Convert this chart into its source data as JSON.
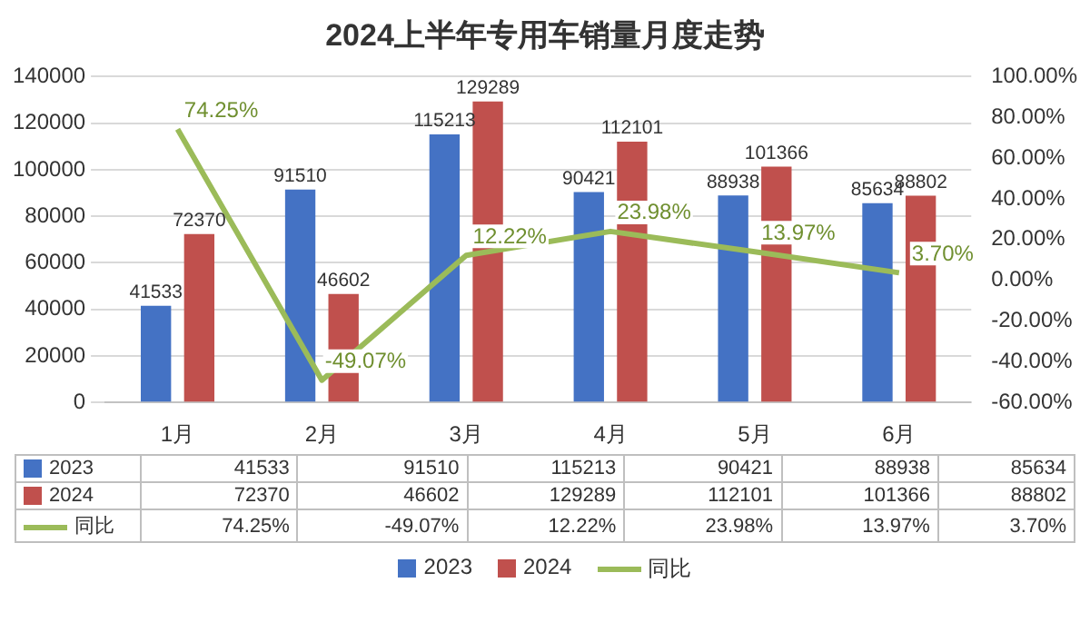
{
  "chart_data": {
    "type": "bar",
    "title": "2024上半年专用车销量月度走势",
    "categories": [
      "1月",
      "2月",
      "3月",
      "4月",
      "5月",
      "6月"
    ],
    "series": [
      {
        "name": "2023",
        "color": "#4472c4",
        "values": [
          41533,
          91510,
          115213,
          90421,
          88938,
          85634
        ],
        "value_labels": [
          "41533",
          "91510",
          "115213",
          "90421",
          "88938",
          "85634"
        ]
      },
      {
        "name": "2024",
        "color": "#c0504d",
        "values": [
          72370,
          46602,
          129289,
          112101,
          101366,
          88802
        ],
        "value_labels": [
          "72370",
          "46602",
          "129289",
          "112101",
          "101366",
          "88802"
        ]
      },
      {
        "name": "同比",
        "type": "line",
        "axis": "y2",
        "color": "#9bbb59",
        "values": [
          74.25,
          -49.07,
          12.22,
          23.98,
          13.97,
          3.7
        ],
        "value_labels": [
          "74.25%",
          "-49.07%",
          "12.22%",
          "23.98%",
          "13.97%",
          "3.70%"
        ]
      }
    ],
    "ylim": [
      0,
      140000
    ],
    "yticks": [
      0,
      20000,
      40000,
      60000,
      80000,
      100000,
      120000,
      140000
    ],
    "y2lim": [
      -60,
      100
    ],
    "y2ticks": [
      {
        "value": -60,
        "label": "-60.00%"
      },
      {
        "value": -40,
        "label": "-40.00%"
      },
      {
        "value": -20,
        "label": "-20.00%"
      },
      {
        "value": 0,
        "label": "0.00%"
      },
      {
        "value": 20,
        "label": "20.00%"
      },
      {
        "value": 40,
        "label": "40.00%"
      },
      {
        "value": 60,
        "label": "60.00%"
      },
      {
        "value": 80,
        "label": "80.00%"
      },
      {
        "value": 100,
        "label": "100.00%"
      }
    ],
    "grid": "y",
    "legend": "bottom",
    "marker": "none",
    "line_style": "solid"
  }
}
